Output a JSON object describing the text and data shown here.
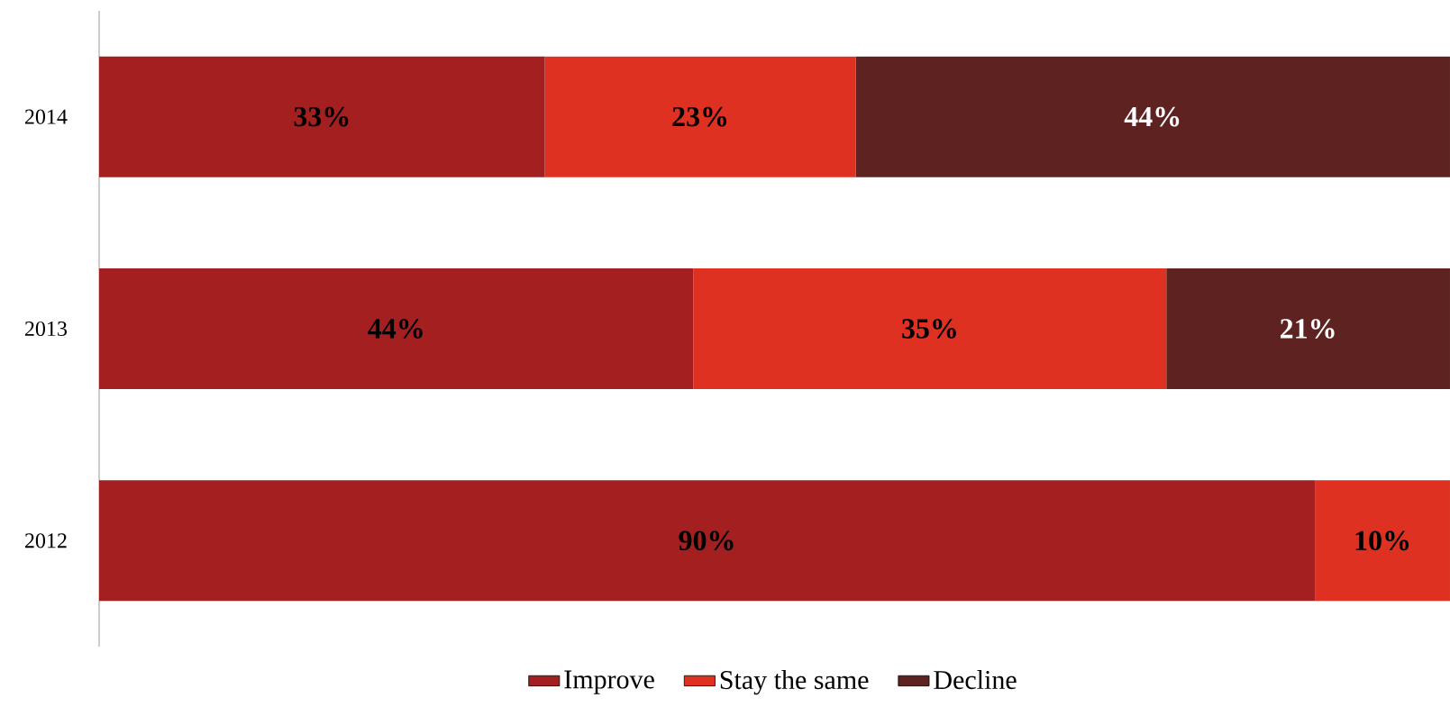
{
  "chart_data": {
    "type": "bar",
    "orientation": "horizontal",
    "stacked": true,
    "categories": [
      "2014",
      "2013",
      "2012"
    ],
    "xlim": [
      0,
      100
    ],
    "tick_labels": "y",
    "grid": false,
    "legend": "bottom",
    "series": [
      {
        "name": "Improve",
        "color": "#a31f20",
        "values": [
          33,
          44,
          90
        ],
        "value_labels": [
          "33%",
          "44%",
          "90%"
        ]
      },
      {
        "name": "Stay the same",
        "color": "#de3121",
        "values": [
          23,
          35,
          10
        ],
        "value_labels": [
          "23%",
          "35%",
          "10%"
        ]
      },
      {
        "name": "Decline",
        "color": "#5e2320",
        "values": [
          44,
          21,
          0
        ],
        "value_labels": [
          "44%",
          "21%",
          null
        ]
      }
    ]
  }
}
